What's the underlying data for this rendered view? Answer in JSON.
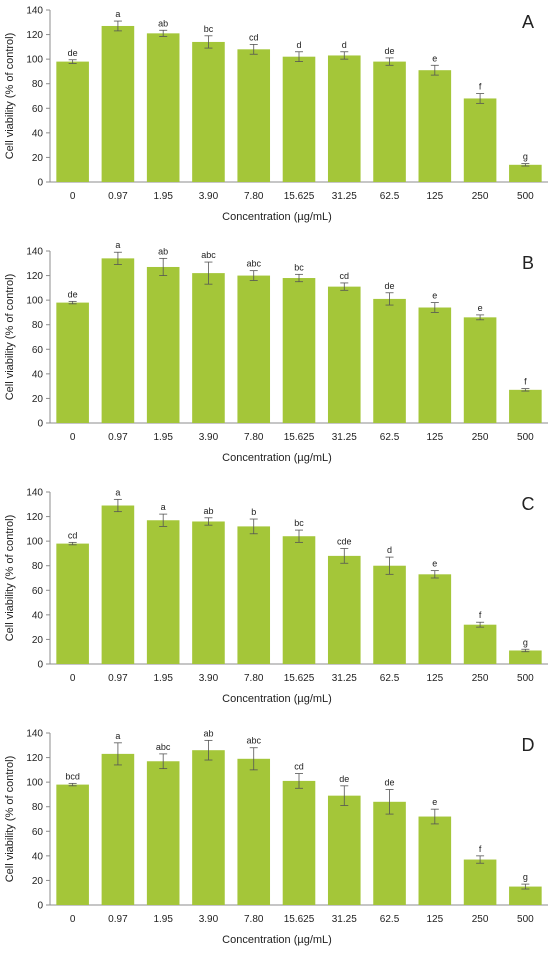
{
  "chart_data": [
    {
      "type": "bar",
      "panel_label": "A",
      "categories": [
        "0",
        "0.97",
        "1.95",
        "3.90",
        "7.80",
        "15.625",
        "31.25",
        "62.5",
        "125",
        "250",
        "500"
      ],
      "values": [
        98,
        127,
        121,
        114,
        108,
        102,
        103,
        98,
        91,
        68,
        14
      ],
      "errors": [
        1.5,
        4,
        2.5,
        5,
        4,
        4,
        3,
        3,
        4,
        4,
        1
      ],
      "significance": [
        "de",
        "a",
        "ab",
        "bc",
        "cd",
        "d",
        "d",
        "de",
        "e",
        "f",
        "g"
      ],
      "xlabel": "Concentration (µg/mL)",
      "ylabel": "Cell viability (% of control)",
      "ylim": [
        0,
        140
      ],
      "yticks": [
        0,
        20,
        40,
        60,
        80,
        100,
        120,
        140
      ]
    },
    {
      "type": "bar",
      "panel_label": "B",
      "categories": [
        "0",
        "0.97",
        "1.95",
        "3.90",
        "7.80",
        "15.625",
        "31.25",
        "62.5",
        "125",
        "250",
        "500"
      ],
      "values": [
        98,
        134,
        127,
        122,
        120,
        118,
        111,
        101,
        94,
        86,
        27
      ],
      "errors": [
        1,
        5,
        7,
        9,
        4,
        3,
        3,
        5,
        4,
        2,
        1
      ],
      "significance": [
        "de",
        "a",
        "ab",
        "abc",
        "abc",
        "bc",
        "cd",
        "de",
        "e",
        "e",
        "f"
      ],
      "xlabel": "Concentration (µg/mL)",
      "ylabel": "Cell viability (% of control)",
      "ylim": [
        0,
        140
      ],
      "yticks": [
        0,
        20,
        40,
        60,
        80,
        100,
        120,
        140
      ]
    },
    {
      "type": "bar",
      "panel_label": "C",
      "categories": [
        "0",
        "0.97",
        "1.95",
        "3.90",
        "7.80",
        "15.625",
        "31.25",
        "62.5",
        "125",
        "250",
        "500"
      ],
      "values": [
        98,
        129,
        117,
        116,
        112,
        104,
        88,
        80,
        73,
        32,
        11
      ],
      "errors": [
        1,
        5,
        5,
        3,
        6,
        5,
        6,
        7,
        3,
        2,
        1
      ],
      "significance": [
        "cd",
        "a",
        "a",
        "ab",
        "b",
        "bc",
        "cde",
        "d",
        "e",
        "f",
        "g"
      ],
      "xlabel": "Concentration (µg/mL)",
      "ylabel": "Cell viability (% of control)",
      "ylim": [
        0,
        140
      ],
      "yticks": [
        0,
        20,
        40,
        60,
        80,
        100,
        120,
        140
      ]
    },
    {
      "type": "bar",
      "panel_label": "D",
      "categories": [
        "0",
        "0.97",
        "1.95",
        "3.90",
        "7.80",
        "15.625",
        "31.25",
        "62.5",
        "125",
        "250",
        "500"
      ],
      "values": [
        98,
        123,
        117,
        126,
        119,
        101,
        89,
        84,
        72,
        37,
        15
      ],
      "errors": [
        1,
        9,
        6,
        8,
        9,
        6,
        8,
        10,
        6,
        3,
        2
      ],
      "significance": [
        "bcd",
        "a",
        "abc",
        "ab",
        "abc",
        "cd",
        "de",
        "de",
        "e",
        "f",
        "g"
      ],
      "xlabel": "Concentration (µg/mL)",
      "ylabel": "Cell viability (% of control)",
      "ylim": [
        0,
        140
      ],
      "yticks": [
        0,
        20,
        40,
        60,
        80,
        100,
        120,
        140
      ]
    }
  ],
  "colors": {
    "bar": "#a4c639",
    "axis": "#8c8c8c",
    "error_bar": "#555555",
    "text": "#222222"
  }
}
